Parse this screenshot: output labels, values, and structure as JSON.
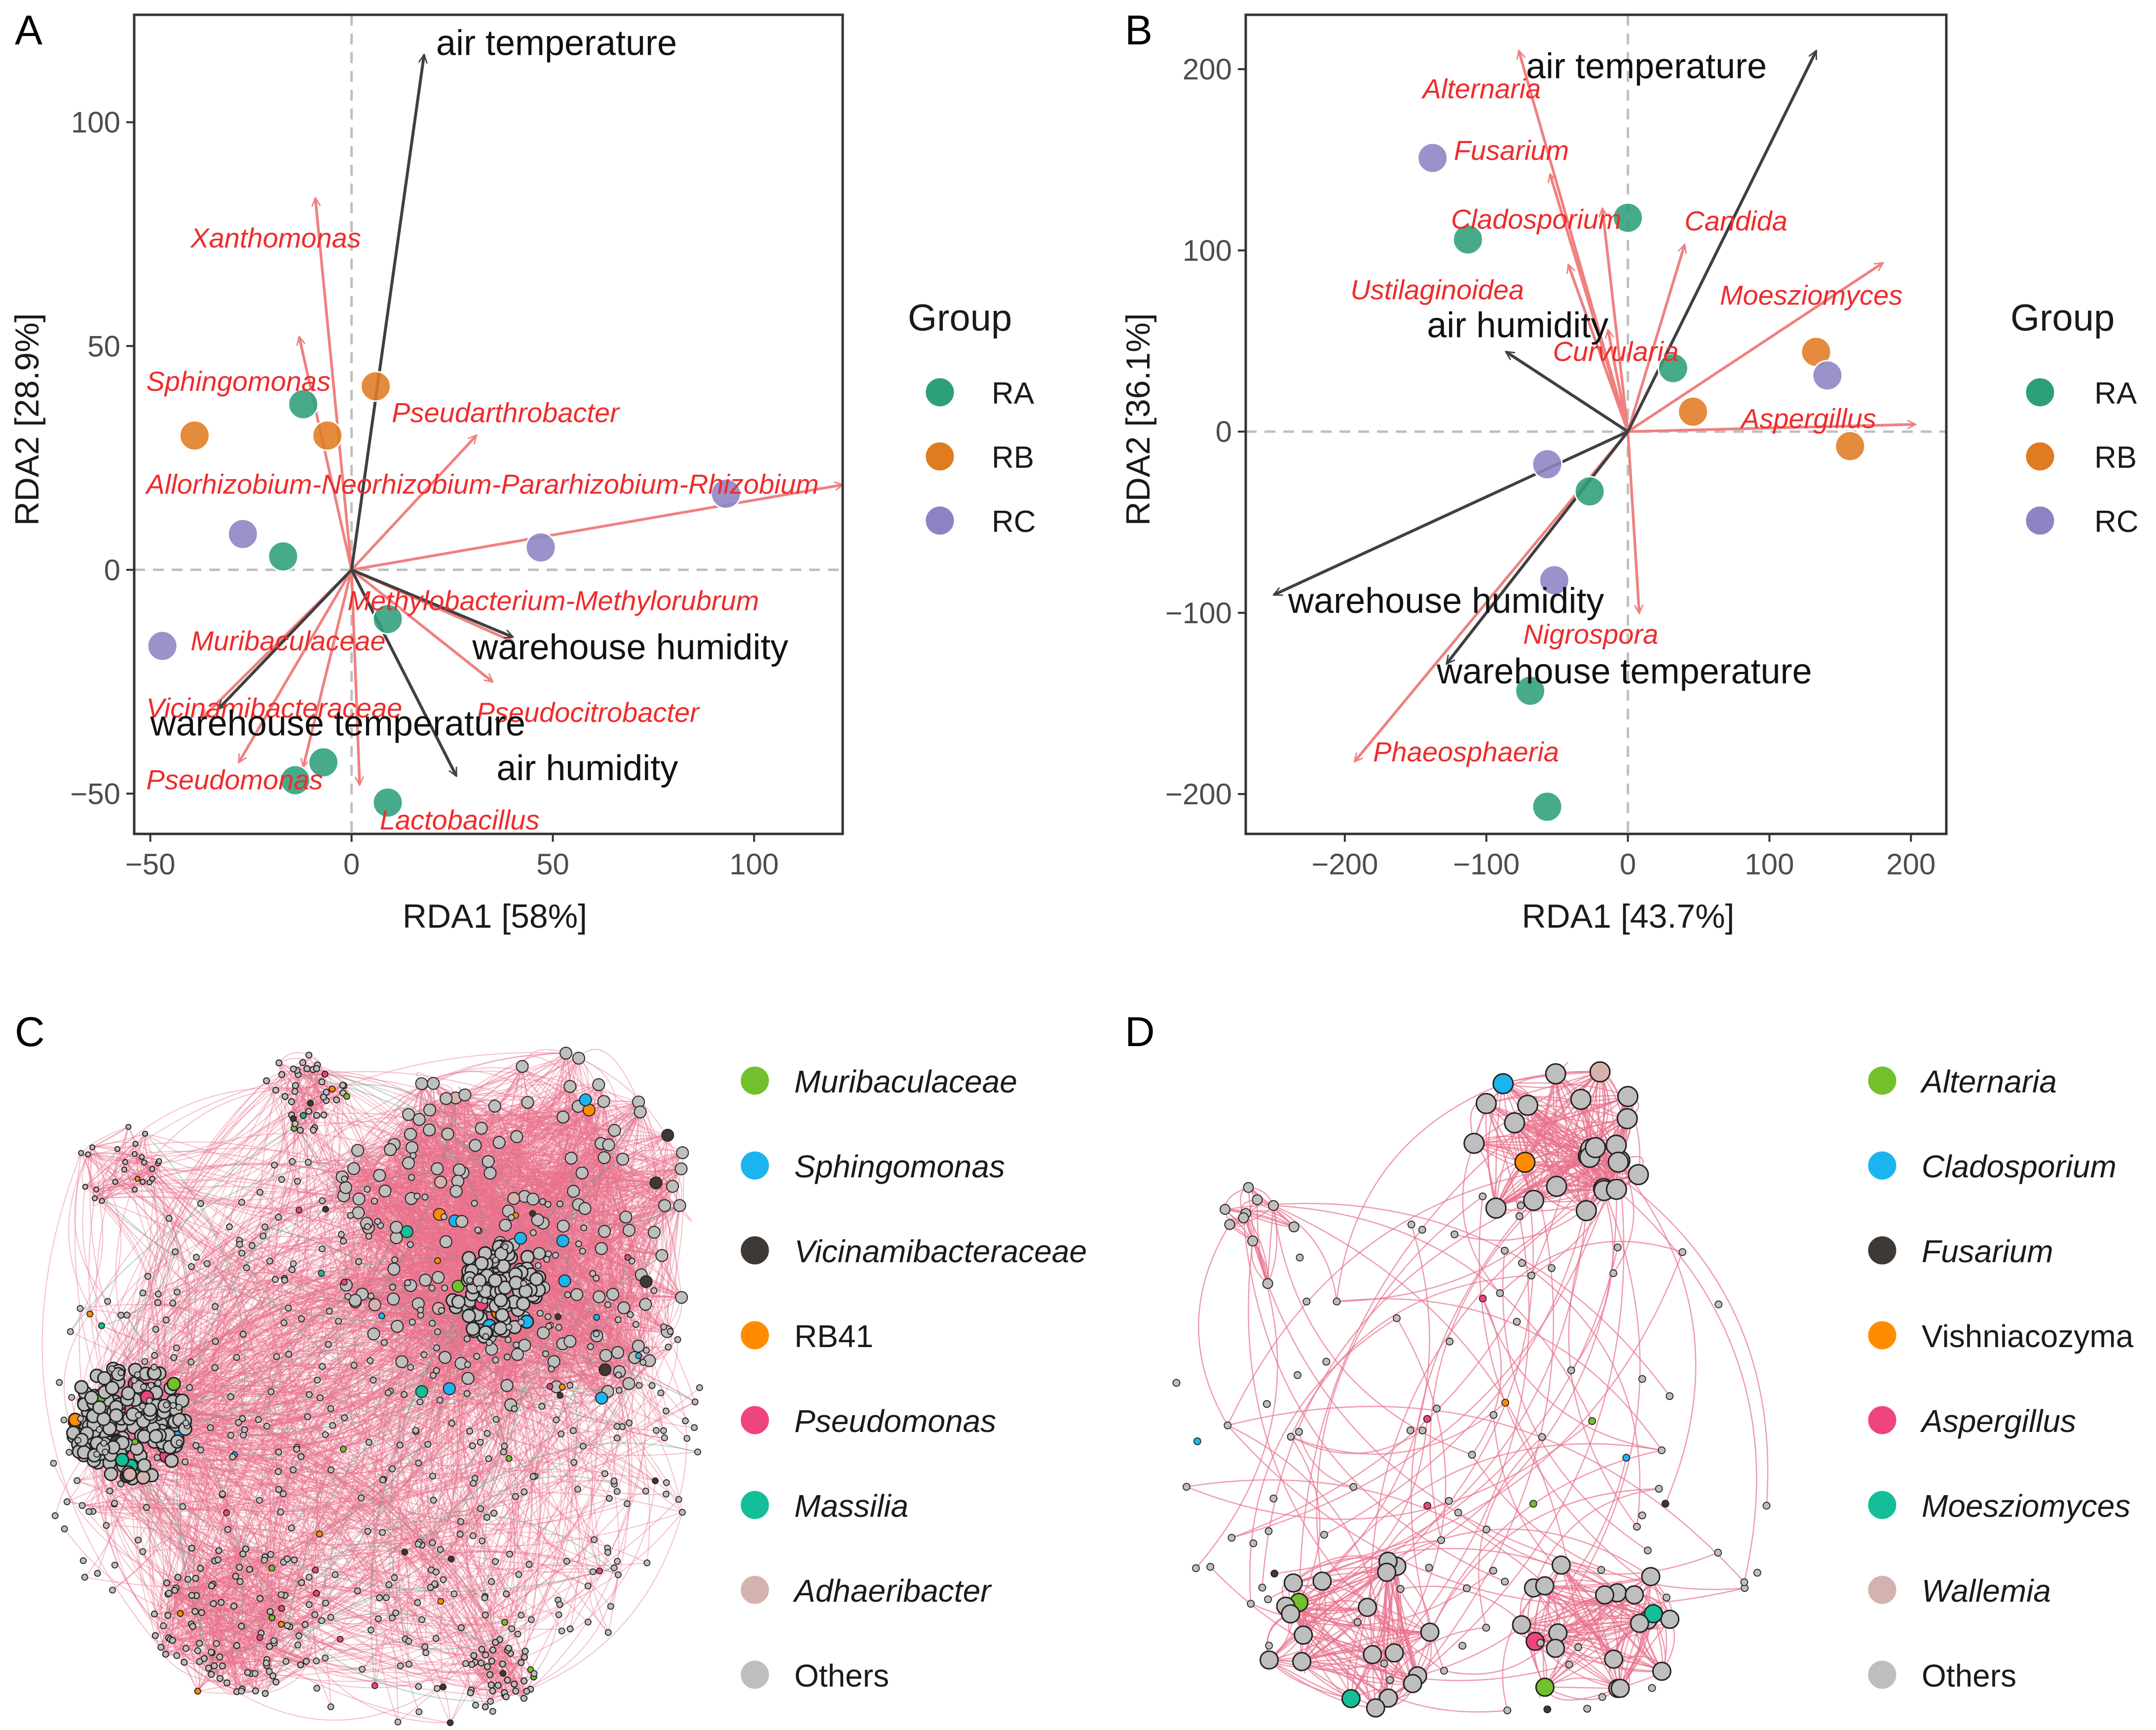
{
  "panels": [
    {
      "id": "A",
      "letter": "A",
      "xlabel": "RDA1 [58%]",
      "ylabel": "RDA2 [28.9%]",
      "xlim": [
        -54,
        122
      ],
      "ylim": [
        -59,
        124
      ],
      "xticks": [
        -50,
        0,
        50,
        100
      ],
      "yticks": [
        -50,
        0,
        50,
        100
      ],
      "legend_title": "Group",
      "groups": [
        {
          "name": "RA",
          "color": "#2E9F7B"
        },
        {
          "name": "RB",
          "color": "#E07B22"
        },
        {
          "name": "RC",
          "color": "#8D83C4"
        }
      ],
      "env_arrows": [
        {
          "label": "air temperature",
          "x": 18,
          "y": 115,
          "lx": 21,
          "ly": 115
        },
        {
          "label": "warehouse humidity",
          "x": 40,
          "y": -15,
          "lx": 30,
          "ly": -20
        },
        {
          "label": "warehouse temperature",
          "x": -33,
          "y": -31,
          "lx": -50,
          "ly": -37
        },
        {
          "label": "air humidity",
          "x": 26,
          "y": -46,
          "lx": 36,
          "ly": -47
        }
      ],
      "taxa_arrows": [
        {
          "label": "Xanthomonas",
          "x": -9,
          "y": 83,
          "lx": -40,
          "ly": 72
        },
        {
          "label": "Sphingomonas",
          "x": -13,
          "y": 52,
          "lx": -51,
          "ly": 40
        },
        {
          "label": "Pseudarthrobacter",
          "x": 31,
          "y": 30,
          "lx": 10,
          "ly": 33
        },
        {
          "label": "Allorhizobium-Neorhizobium-Pararhizobium-Rhizobium",
          "x": 122,
          "y": 19,
          "lx": -51,
          "ly": 17
        },
        {
          "label": "Methylobacterium-Methylorubrum",
          "x": 40,
          "y": -16,
          "lx": -1,
          "ly": -9
        },
        {
          "label": "Muribaculaceae",
          "x": -37,
          "y": -33,
          "lx": -40,
          "ly": -18
        },
        {
          "label": "Vicinamibacteraceae",
          "x": -28,
          "y": -43,
          "lx": -51,
          "ly": -33
        },
        {
          "label": "Pseudocitrobacter",
          "x": 35,
          "y": -25,
          "lx": 31,
          "ly": -34
        },
        {
          "label": "Pseudomonas",
          "x": -12,
          "y": -44,
          "lx": -51,
          "ly": -49
        },
        {
          "label": "Lactobacillus",
          "x": 2,
          "y": -48,
          "lx": 7,
          "ly": -58
        }
      ],
      "points": [
        {
          "group": "RA",
          "x": -12,
          "y": 37
        },
        {
          "group": "RA",
          "x": -17,
          "y": 3
        },
        {
          "group": "RA",
          "x": -7,
          "y": -43
        },
        {
          "group": "RA",
          "x": -14,
          "y": -47
        },
        {
          "group": "RA",
          "x": 9,
          "y": -52
        },
        {
          "group": "RA",
          "x": 9,
          "y": -11
        },
        {
          "group": "RB",
          "x": 6,
          "y": 41
        },
        {
          "group": "RB",
          "x": -39,
          "y": 30
        },
        {
          "group": "RB",
          "x": -6,
          "y": 30
        },
        {
          "group": "RC",
          "x": -27,
          "y": 8
        },
        {
          "group": "RC",
          "x": -47,
          "y": -17
        },
        {
          "group": "RC",
          "x": 47,
          "y": 5
        },
        {
          "group": "RC",
          "x": 93,
          "y": 17
        }
      ]
    },
    {
      "id": "B",
      "letter": "B",
      "xlabel": "RDA1 [43.7%]",
      "ylabel": "RDA2 [36.1%]",
      "xlim": [
        -270,
        225
      ],
      "ylim": [
        -222,
        230
      ],
      "xticks": [
        -200,
        -100,
        0,
        100,
        200
      ],
      "yticks": [
        -200,
        -100,
        0,
        100,
        200
      ],
      "legend_title": "Group",
      "groups": [
        {
          "name": "RA",
          "color": "#2E9F7B"
        },
        {
          "name": "RB",
          "color": "#E07B22"
        },
        {
          "name": "RC",
          "color": "#8D83C4"
        }
      ],
      "env_arrows": [
        {
          "label": "air temperature",
          "x": 133,
          "y": 210,
          "lx": -72,
          "ly": 195
        },
        {
          "label": "air humidity",
          "x": -86,
          "y": 44,
          "lx": -142,
          "ly": 52
        },
        {
          "label": "warehouse humidity",
          "x": -250,
          "y": -90,
          "lx": -240,
          "ly": -100
        },
        {
          "label": "warehouse temperature",
          "x": -128,
          "y": -128,
          "lx": -135,
          "ly": -139
        }
      ],
      "taxa_arrows": [
        {
          "label": "Alternaria",
          "x": -77,
          "y": 210,
          "lx": -145,
          "ly": 184
        },
        {
          "label": "Fusarium",
          "x": -55,
          "y": 142,
          "lx": -123,
          "ly": 150
        },
        {
          "label": "Cladosporium",
          "x": -18,
          "y": 123,
          "lx": -125,
          "ly": 112
        },
        {
          "label": "Candida",
          "x": 40,
          "y": 103,
          "lx": 40,
          "ly": 111
        },
        {
          "label": "Ustilaginoidea",
          "x": -42,
          "y": 92,
          "lx": -196,
          "ly": 73
        },
        {
          "label": "Moesziomyces",
          "x": 180,
          "y": 93,
          "lx": 65,
          "ly": 70
        },
        {
          "label": "Curvularia",
          "x": -14,
          "y": 56,
          "lx": -53,
          "ly": 39
        },
        {
          "label": "Aspergillus",
          "x": 203,
          "y": 4,
          "lx": 80,
          "ly": 2
        },
        {
          "label": "Nigrospora",
          "x": 8,
          "y": -100,
          "lx": -74,
          "ly": -117
        },
        {
          "label": "Phaeosphaeria",
          "x": -193,
          "y": -182,
          "lx": -180,
          "ly": -182
        }
      ],
      "points": [
        {
          "group": "RA",
          "x": -113,
          "y": 106
        },
        {
          "group": "RA",
          "x": 0,
          "y": 118
        },
        {
          "group": "RA",
          "x": 32,
          "y": 35
        },
        {
          "group": "RA",
          "x": -27,
          "y": -33
        },
        {
          "group": "RA",
          "x": -69,
          "y": -143
        },
        {
          "group": "RA",
          "x": -57,
          "y": -207
        },
        {
          "group": "RB",
          "x": 133,
          "y": 44
        },
        {
          "group": "RB",
          "x": 46,
          "y": 11
        },
        {
          "group": "RB",
          "x": 157,
          "y": -8
        },
        {
          "group": "RC",
          "x": -138,
          "y": 151
        },
        {
          "group": "RC",
          "x": 141,
          "y": 31
        },
        {
          "group": "RC",
          "x": -57,
          "y": -18
        },
        {
          "group": "RC",
          "x": -52,
          "y": -82
        }
      ]
    }
  ],
  "networks": [
    {
      "id": "C",
      "letter": "C",
      "legend": [
        {
          "label": "Muribaculaceae",
          "color": "#72C02C",
          "italic": true
        },
        {
          "label": "Sphingomonas",
          "color": "#1CB4EE",
          "italic": true
        },
        {
          "label": "Vicinamibacteraceae",
          "color": "#3E3935",
          "italic": true
        },
        {
          "label": "RB41",
          "color": "#FF8C00",
          "italic": false
        },
        {
          "label": "Pseudomonas",
          "color": "#F0447E",
          "italic": true
        },
        {
          "label": "Massilia",
          "color": "#14BE98",
          "italic": true
        },
        {
          "label": "Adhaeribacter",
          "color": "#D4B3AE",
          "italic": true
        },
        {
          "label": "Others",
          "color": "#BEBEBE",
          "italic": false
        }
      ]
    },
    {
      "id": "D",
      "letter": "D",
      "legend": [
        {
          "label": "Alternaria",
          "color": "#72C02C",
          "italic": true
        },
        {
          "label": "Cladosporium",
          "color": "#1CB4EE",
          "italic": true
        },
        {
          "label": "Fusarium",
          "color": "#3E3935",
          "italic": true
        },
        {
          "label": "Vishniacozyma",
          "color": "#FF8C00",
          "italic": false
        },
        {
          "label": "Aspergillus",
          "color": "#F0447E",
          "italic": true
        },
        {
          "label": "Moesziomyces",
          "color": "#14BE98",
          "italic": true
        },
        {
          "label": "Wallemia",
          "color": "#D4B3AE",
          "italic": true
        },
        {
          "label": "Others",
          "color": "#BEBEBE",
          "italic": false
        }
      ]
    }
  ],
  "colors": {
    "env_arrow": "#404040",
    "taxa_arrow": "#F08080",
    "taxa_label": "#EE2C2C",
    "edge_pos": "#E8708C",
    "edge_neg": "#3EAA80",
    "zero_line": "#BFBFBF"
  }
}
